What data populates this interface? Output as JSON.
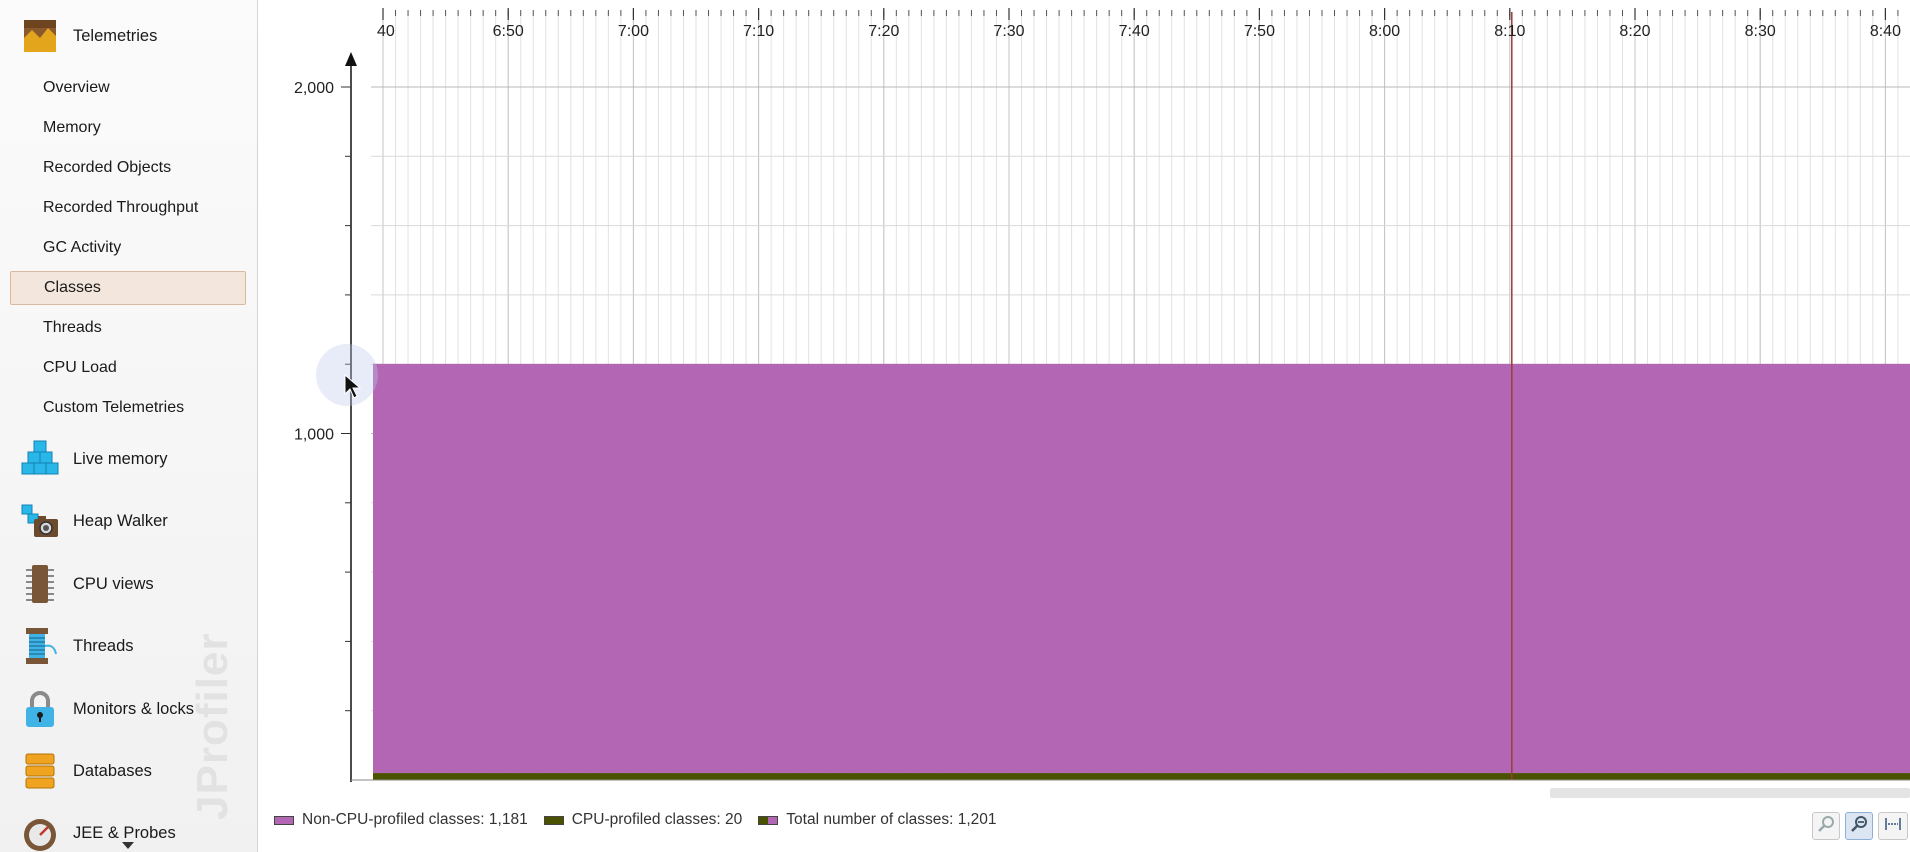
{
  "sidebar": {
    "sections_top": [
      {
        "label": "Telemetries",
        "icon": "telemetries-icon"
      }
    ],
    "telemetry_items": [
      {
        "label": "Overview"
      },
      {
        "label": "Memory"
      },
      {
        "label": "Recorded Objects"
      },
      {
        "label": "Recorded Throughput"
      },
      {
        "label": "GC Activity"
      },
      {
        "label": "Classes",
        "selected": true
      },
      {
        "label": "Threads"
      },
      {
        "label": "CPU Load"
      },
      {
        "label": "Custom Telemetries"
      }
    ],
    "sections": [
      {
        "label": "Live memory",
        "icon": "live-memory-icon"
      },
      {
        "label": "Heap Walker",
        "icon": "heap-walker-icon"
      },
      {
        "label": "CPU views",
        "icon": "cpu-views-icon"
      },
      {
        "label": "Threads",
        "icon": "threads-icon"
      },
      {
        "label": "Monitors & locks",
        "icon": "monitors-locks-icon"
      },
      {
        "label": "Databases",
        "icon": "databases-icon"
      },
      {
        "label": "JEE & Probes",
        "icon": "jee-probes-icon"
      }
    ],
    "watermark": "JProfiler"
  },
  "legend": [
    {
      "label": "Non-CPU-profiled classes: 1,181",
      "color": "#b366b3"
    },
    {
      "label": "CPU-profiled classes: 20",
      "color": "#4a5200"
    },
    {
      "label": "Total number of classes: 1,201",
      "color": "#b366b3",
      "color2": "#4a5200"
    }
  ],
  "zoom_buttons": [
    {
      "name": "zoom-in-icon",
      "active": false
    },
    {
      "name": "zoom-out-icon",
      "active": true
    },
    {
      "name": "fit-width-icon",
      "active": false
    }
  ],
  "chart_data": {
    "type": "area",
    "stacked": true,
    "x_tick_labels": [
      "40",
      "6:50",
      "7:00",
      "7:10",
      "7:20",
      "7:30",
      "7:40",
      "7:50",
      "8:00",
      "8:10",
      "8:20",
      "8:30",
      "8:40"
    ],
    "y_tick_labels": [
      "1,000",
      "2,000"
    ],
    "ylim": [
      0,
      2000
    ],
    "grid": true,
    "series": [
      {
        "name": "CPU-profiled classes",
        "color": "#4a5200",
        "value": 20
      },
      {
        "name": "Non-CPU-profiled classes",
        "color": "#b366b3",
        "value": 1181
      }
    ],
    "total": {
      "name": "Total number of classes",
      "value": 1201
    },
    "marker_time": "8:10",
    "marker_color": "#9a3b3b"
  }
}
